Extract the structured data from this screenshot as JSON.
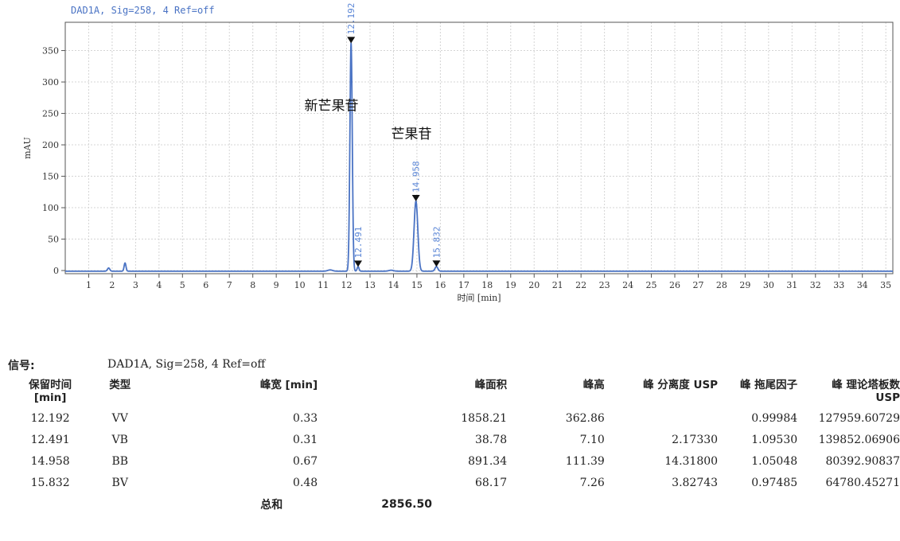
{
  "signal_title": "DAD1A, Sig=258, 4   Ref=off",
  "chart_data": {
    "type": "line",
    "title": "DAD1A, Sig=258, 4   Ref=off",
    "xlabel": "时间 [min]",
    "ylabel": "mAU",
    "xlim": [
      0,
      35.3
    ],
    "ylim": [
      -5,
      395
    ],
    "x_ticks": [
      1,
      2,
      3,
      4,
      5,
      6,
      7,
      8,
      9,
      10,
      11,
      12,
      13,
      14,
      15,
      16,
      17,
      18,
      19,
      20,
      21,
      22,
      23,
      24,
      25,
      26,
      27,
      28,
      29,
      30,
      31,
      32,
      33,
      34,
      35
    ],
    "y_ticks": [
      0,
      50,
      100,
      150,
      200,
      250,
      300,
      350
    ],
    "grid": true,
    "line_color": "#4a73c4",
    "peaks": [
      {
        "rt": 12.192,
        "height": 362.86,
        "width": 0.05,
        "label": "12.192"
      },
      {
        "rt": 12.491,
        "height": 7.1,
        "width": 0.04,
        "label": "12.491"
      },
      {
        "rt": 14.958,
        "height": 111.39,
        "width": 0.08,
        "label": "14.958"
      },
      {
        "rt": 15.832,
        "height": 7.26,
        "width": 0.06,
        "label": "15.832"
      }
    ],
    "minor_peaks": [
      {
        "rt": 1.85,
        "height": 5,
        "width": 0.05
      },
      {
        "rt": 2.55,
        "height": 13,
        "width": 0.04
      },
      {
        "rt": 11.3,
        "height": 2,
        "width": 0.1
      },
      {
        "rt": 13.9,
        "height": 1.5,
        "width": 0.1
      }
    ],
    "annotations": [
      {
        "text": "新芒果苷",
        "x": 10.2,
        "y": 255
      },
      {
        "text": "芒果苷",
        "x": 13.9,
        "y": 210
      }
    ]
  },
  "signal": {
    "label": "信号:",
    "value": "DAD1A, Sig=258, 4   Ref=off"
  },
  "table": {
    "headers": [
      [
        "保留时间",
        "[min]"
      ],
      [
        "类型"
      ],
      [
        "峰宽 [min]"
      ],
      [
        "峰面积"
      ],
      [
        "峰高"
      ],
      [
        "峰 分离度 USP"
      ],
      [
        "峰 拖尾因子"
      ],
      [
        "峰 理论塔板数",
        "USP"
      ]
    ],
    "rows": [
      [
        "12.192",
        "VV",
        "0.33",
        "1858.21",
        "362.86",
        "",
        "0.99984",
        "127959.60729"
      ],
      [
        "12.491",
        "VB",
        "0.31",
        "38.78",
        "7.10",
        "2.17330",
        "1.09530",
        "139852.06906"
      ],
      [
        "14.958",
        "BB",
        "0.67",
        "891.34",
        "111.39",
        "14.31800",
        "1.05048",
        "80392.90837"
      ],
      [
        "15.832",
        "BV",
        "0.48",
        "68.17",
        "7.26",
        "3.82743",
        "0.97485",
        "64780.45271"
      ]
    ],
    "total_label": "总和",
    "total_value": "2856.50"
  }
}
